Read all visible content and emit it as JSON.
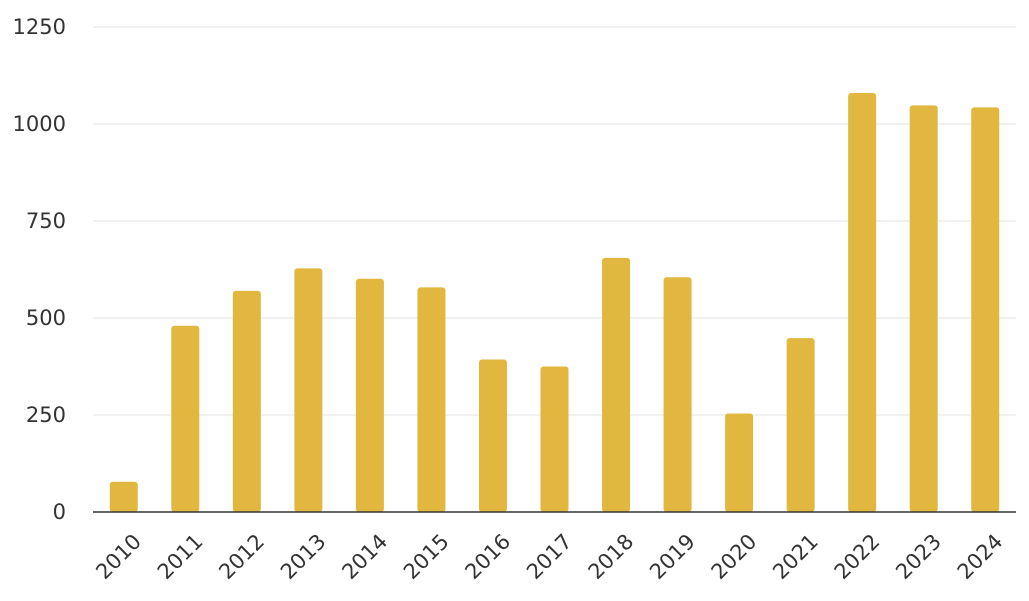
{
  "chart_data": {
    "type": "bar",
    "categories": [
      "2010",
      "2011",
      "2012",
      "2013",
      "2014",
      "2015",
      "2016",
      "2017",
      "2018",
      "2019",
      "2020",
      "2021",
      "2022",
      "2023",
      "2024"
    ],
    "values": [
      78,
      480,
      570,
      628,
      601,
      579,
      393,
      375,
      655,
      605,
      254,
      448,
      1080,
      1048,
      1043
    ],
    "title": "",
    "xlabel": "",
    "ylabel": "",
    "ylim": [
      0,
      1250
    ],
    "yticks": [
      0,
      250,
      500,
      750,
      1000,
      1250
    ],
    "grid": true,
    "legend": "none",
    "bar_color": "#e1b740"
  }
}
